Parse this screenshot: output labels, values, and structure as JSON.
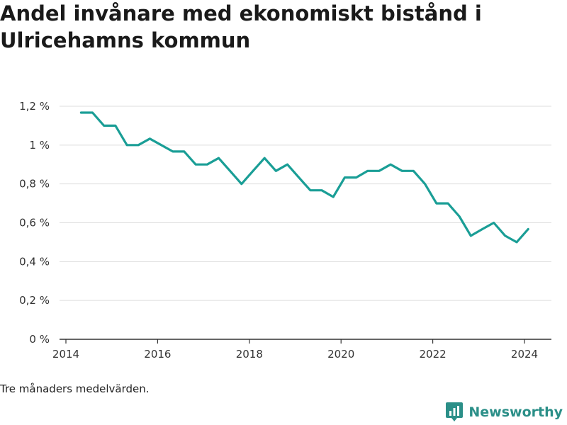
{
  "title": "Andel invånare med ekonomiskt bistånd i Ulricehamns kommun",
  "note": "Tre månaders medelvärden.",
  "brand": {
    "name": "Newsworthy",
    "icon": "bar-chart-logo-icon",
    "color": "#2b8f88"
  },
  "chart_data": {
    "type": "line",
    "title": "Andel invånare med ekonomiskt bistånd i Ulricehamns kommun",
    "xlabel": "",
    "ylabel": "",
    "xlim": [
      2014,
      2025
    ],
    "ylim": [
      0,
      1.2
    ],
    "x_ticks": [
      2014,
      2016,
      2018,
      2020,
      2022,
      2024
    ],
    "y_ticks": [
      0,
      0.2,
      0.4,
      0.6,
      0.8,
      1.0,
      1.2
    ],
    "y_tick_labels": [
      "0 %",
      "0,2 %",
      "0,4 %",
      "0,6 %",
      "0,8 %",
      "1 %",
      "1,2 %"
    ],
    "grid": true,
    "line_color": "#1a9e96",
    "series": [
      {
        "x": [
          2014.33,
          2014.58,
          2014.83,
          2015.08,
          2015.33,
          2015.58,
          2015.83,
          2016.08,
          2016.33,
          2016.58,
          2016.83,
          2017.08,
          2017.33,
          2017.58,
          2017.83,
          2018.08,
          2018.33,
          2018.58,
          2018.83,
          2019.08,
          2019.33,
          2019.58,
          2019.83,
          2020.08,
          2020.33,
          2020.58,
          2020.83,
          2021.08,
          2021.33,
          2021.58,
          2021.83,
          2022.08,
          2022.33,
          2022.58,
          2022.83,
          2023.08,
          2023.33,
          2023.58,
          2023.83,
          2024.08
        ],
        "values": [
          1.167,
          1.167,
          1.1,
          1.1,
          1.0,
          1.0,
          1.033,
          1.0,
          0.967,
          0.967,
          0.9,
          0.9,
          0.933,
          0.867,
          0.8,
          0.867,
          0.933,
          0.867,
          0.9,
          0.833,
          0.767,
          0.767,
          0.733,
          0.833,
          0.833,
          0.867,
          0.867,
          0.9,
          0.867,
          0.867,
          0.8,
          0.7,
          0.7,
          0.633,
          0.533,
          0.567,
          0.6,
          0.533,
          0.5,
          0.567
        ]
      }
    ]
  }
}
